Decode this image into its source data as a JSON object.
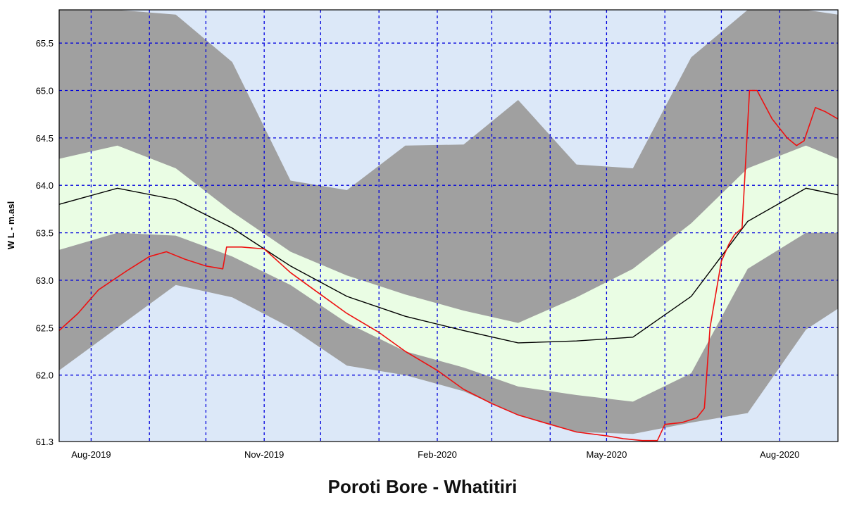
{
  "chart_data": {
    "type": "area",
    "title": "Poroti Bore - Whatitiri",
    "ylabel": "W L - m.asl",
    "xlabel": "",
    "ylim": [
      61.3,
      65.85
    ],
    "xlim": [
      "2019-07-15",
      "2020-09-01"
    ],
    "yticks": [
      61.3,
      62.0,
      62.5,
      63.0,
      63.5,
      64.0,
      64.5,
      65.0,
      65.5
    ],
    "ytick_labels": [
      "61.3",
      "62.0",
      "62.5",
      "63.0",
      "63.5",
      "64.0",
      "64.5",
      "65.0",
      "65.5"
    ],
    "xticks": [
      {
        "date": "2019-08-01",
        "label": "Aug-2019"
      },
      {
        "date": "2019-11-01",
        "label": "Nov-2019"
      },
      {
        "date": "2020-02-01",
        "label": "Feb-2020"
      },
      {
        "date": "2020-05-01",
        "label": "May-2020"
      },
      {
        "date": "2020-08-01",
        "label": "Aug-2020"
      }
    ],
    "grid": true,
    "colors": {
      "plot_background": "#dce8f8",
      "outer_band": "#a0a0a0",
      "inner_band": "#eafde4",
      "median_line": "#000000",
      "observed_line": "#ee1111",
      "grid": "#0000dd"
    },
    "series": [
      {
        "role": "outer_band",
        "x": [
          "2019-07-15",
          "2019-08-15",
          "2019-09-15",
          "2019-10-15",
          "2019-11-15",
          "2019-12-15",
          "2020-01-15",
          "2020-02-15",
          "2020-03-15",
          "2020-04-15",
          "2020-05-15",
          "2020-06-15",
          "2020-07-15",
          "2020-08-15",
          "2020-09-01"
        ],
        "upper": [
          65.85,
          65.85,
          65.8,
          65.3,
          64.05,
          63.95,
          64.42,
          64.43,
          64.9,
          64.22,
          64.18,
          65.35,
          65.85,
          65.85,
          65.8
        ],
        "lower": [
          62.05,
          62.5,
          62.95,
          62.82,
          62.5,
          62.1,
          62.0,
          61.83,
          61.58,
          61.4,
          61.38,
          61.5,
          61.6,
          62.48,
          62.7
        ]
      },
      {
        "role": "inner_band",
        "x": [
          "2019-07-15",
          "2019-08-15",
          "2019-09-15",
          "2019-10-15",
          "2019-11-15",
          "2019-12-15",
          "2020-01-15",
          "2020-02-15",
          "2020-03-15",
          "2020-04-15",
          "2020-05-15",
          "2020-06-15",
          "2020-07-15",
          "2020-08-15",
          "2020-09-01"
        ],
        "upper": [
          64.28,
          64.42,
          64.18,
          63.72,
          63.3,
          63.05,
          62.85,
          62.68,
          62.55,
          62.82,
          63.12,
          63.6,
          64.18,
          64.42,
          64.28
        ],
        "lower": [
          63.32,
          63.5,
          63.47,
          63.25,
          62.95,
          62.55,
          62.25,
          62.08,
          61.88,
          61.79,
          61.72,
          62.02,
          63.12,
          63.5,
          63.5
        ]
      },
      {
        "role": "median",
        "x": [
          "2019-07-15",
          "2019-08-15",
          "2019-09-15",
          "2019-10-15",
          "2019-11-15",
          "2019-12-15",
          "2020-01-15",
          "2020-02-15",
          "2020-03-15",
          "2020-04-15",
          "2020-05-15",
          "2020-06-15",
          "2020-07-15",
          "2020-08-15",
          "2020-09-01"
        ],
        "values": [
          63.8,
          63.97,
          63.85,
          63.55,
          63.15,
          62.83,
          62.62,
          62.47,
          62.34,
          62.36,
          62.4,
          62.83,
          63.62,
          63.97,
          63.9
        ]
      },
      {
        "role": "observed",
        "x": [
          "2019-07-15",
          "2019-07-25",
          "2019-08-05",
          "2019-08-20",
          "2019-09-01",
          "2019-09-10",
          "2019-09-20",
          "2019-10-01",
          "2019-10-10",
          "2019-10-12",
          "2019-10-20",
          "2019-11-01",
          "2019-11-15",
          "2019-12-01",
          "2019-12-15",
          "2020-01-01",
          "2020-01-15",
          "2020-02-01",
          "2020-02-15",
          "2020-03-01",
          "2020-03-15",
          "2020-04-01",
          "2020-04-15",
          "2020-05-01",
          "2020-05-10",
          "2020-05-20",
          "2020-05-28",
          "2020-06-01",
          "2020-06-10",
          "2020-06-18",
          "2020-06-22",
          "2020-06-25",
          "2020-07-01",
          "2020-07-05",
          "2020-07-08",
          "2020-07-12",
          "2020-07-16",
          "2020-07-20",
          "2020-07-28",
          "2020-08-05",
          "2020-08-10",
          "2020-08-14",
          "2020-08-20",
          "2020-08-25",
          "2020-09-01"
        ],
        "values": [
          62.47,
          62.65,
          62.9,
          63.1,
          63.25,
          63.3,
          63.22,
          63.15,
          63.12,
          63.35,
          63.35,
          63.33,
          63.08,
          62.85,
          62.65,
          62.45,
          62.25,
          62.05,
          61.85,
          61.7,
          61.58,
          61.48,
          61.4,
          61.36,
          61.33,
          61.31,
          61.31,
          61.48,
          61.5,
          61.55,
          61.65,
          62.5,
          63.2,
          63.38,
          63.48,
          63.55,
          65.0,
          65.0,
          64.7,
          64.5,
          64.42,
          64.47,
          64.82,
          64.78,
          64.7
        ]
      }
    ]
  }
}
